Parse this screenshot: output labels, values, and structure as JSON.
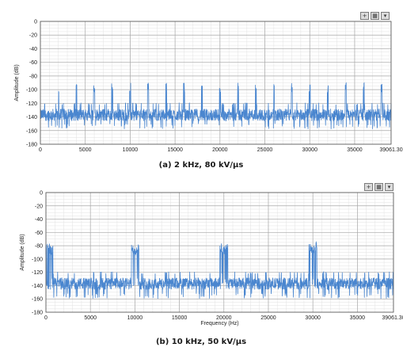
{
  "chart_data": [
    {
      "type": "line",
      "caption": "(a) 2 kHz, 80 kV/μs",
      "xlabel": "",
      "ylabel": "Amplitude (dB)",
      "xlim": [
        0,
        39061.3
      ],
      "ylim": [
        -180,
        0
      ],
      "xticks": [
        "0",
        "5000",
        "10000",
        "15000",
        "20000",
        "25000",
        "30000",
        "35000",
        "39061.30"
      ],
      "yticks": [
        "0",
        "-20",
        "-40",
        "-60",
        "-80",
        "-100",
        "-120",
        "-140",
        "-160",
        "-180"
      ],
      "series_color": "#4a86cf",
      "noise_floor_db": -137,
      "noise_range_db": [
        -158,
        -122
      ],
      "spike_spacing_hz": 2000,
      "spike_peak_db": -104,
      "grid": true
    },
    {
      "type": "line",
      "caption": "(b) 10 kHz, 50 kV/μs",
      "xlabel": "Frequency (Hz)",
      "ylabel": "Amplitude (dB)",
      "xlim": [
        0,
        39061.3
      ],
      "ylim": [
        -180,
        0
      ],
      "xticks": [
        "0",
        "5000",
        "10000",
        "15000",
        "20000",
        "25000",
        "30000",
        "35000",
        "39061.30"
      ],
      "yticks": [
        "0",
        "-20",
        "-40",
        "-60",
        "-80",
        "-100",
        "-120",
        "-140",
        "-160",
        "-180"
      ],
      "series_color": "#4a86cf",
      "noise_floor_db": -137,
      "noise_range_db": [
        -160,
        -122
      ],
      "spike_spacing_hz": 10000,
      "spike_peak_db": -95,
      "grid": true
    }
  ],
  "toolbar_icons": [
    "crosshair-icon",
    "zoom-icon",
    "save-icon"
  ]
}
